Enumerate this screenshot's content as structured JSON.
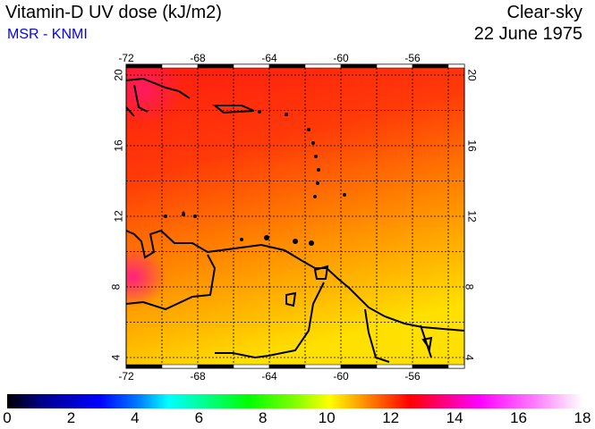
{
  "header": {
    "title": "Vitamin-D UV dose (kJ/m2)",
    "source": "MSR - KNMI",
    "condition": "Clear-sky",
    "date": "22 June 1975"
  },
  "map": {
    "lon_labels": [
      "-72",
      "-68",
      "-64",
      "-60",
      "-56"
    ],
    "lat_labels": [
      "20",
      "16",
      "12",
      "8",
      "4"
    ],
    "lon_range": [
      -72,
      -53
    ],
    "lat_range": [
      3.4,
      20.6
    ]
  },
  "colorbar": {
    "labels": [
      "0",
      "2",
      "4",
      "6",
      "8",
      "10",
      "12",
      "14",
      "16",
      "18"
    ],
    "range": [
      0,
      18
    ]
  }
}
